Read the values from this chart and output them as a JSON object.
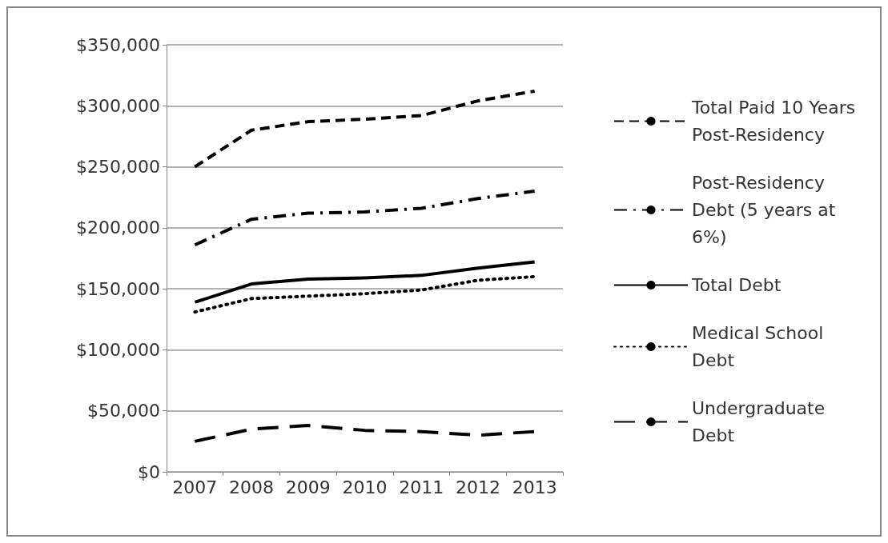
{
  "chart_data": {
    "type": "line",
    "categories": [
      "2007",
      "2008",
      "2009",
      "2010",
      "2011",
      "2012",
      "2013"
    ],
    "series": [
      {
        "name": "Total Paid 10 Years Post-Residency",
        "color": "#000000",
        "line_style": "dashed",
        "values": [
          250000,
          280000,
          287000,
          289000,
          292000,
          304000,
          312000
        ]
      },
      {
        "name": "Post-Residency Debt (5 years at 6%)",
        "color": "#000000",
        "line_style": "dashdot",
        "values": [
          186000,
          207000,
          212000,
          213000,
          216000,
          224000,
          230000
        ]
      },
      {
        "name": "Total Debt",
        "color": "#000000",
        "line_style": "solid",
        "values": [
          139000,
          154000,
          158000,
          159000,
          161000,
          167000,
          172000
        ]
      },
      {
        "name": "Medical School Debt",
        "color": "#000000",
        "line_style": "dotted",
        "values": [
          131000,
          142000,
          144000,
          146000,
          149000,
          157000,
          160000
        ]
      },
      {
        "name": "Undergraduate Debt",
        "color": "#000000",
        "line_style": "longdash",
        "values": [
          25000,
          35000,
          38000,
          34000,
          33000,
          30000,
          33000
        ]
      }
    ],
    "ylim": [
      0,
      350000
    ],
    "yticks": [
      {
        "value": 0,
        "label": "$0"
      },
      {
        "value": 50000,
        "label": "$50,000"
      },
      {
        "value": 100000,
        "label": "$100,000"
      },
      {
        "value": 150000,
        "label": "$150,000"
      },
      {
        "value": 200000,
        "label": "$200,000"
      },
      {
        "value": 250000,
        "label": "$250,000"
      },
      {
        "value": 300000,
        "label": "$300,000"
      },
      {
        "value": 350000,
        "label": "$350,000"
      }
    ],
    "grid": "y",
    "legend": "right",
    "marker": "none"
  }
}
